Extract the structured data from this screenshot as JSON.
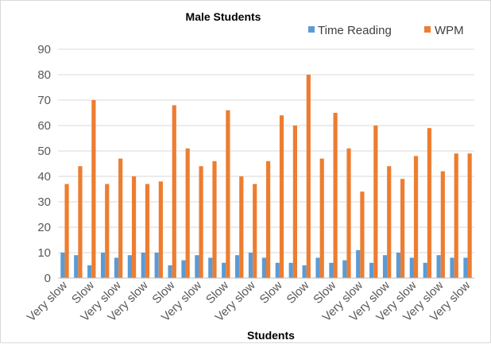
{
  "chart_data": {
    "type": "bar",
    "title": "Male Students",
    "xlabel": "Students",
    "ylabel": "",
    "ylim": [
      0,
      90
    ],
    "yticks": [
      0,
      10,
      20,
      30,
      40,
      50,
      60,
      70,
      80,
      90
    ],
    "grid": true,
    "legend_position": "top-right",
    "categories": [
      "Very slow",
      "Very slow",
      "Slow",
      "Very slow",
      "Very slow",
      "Very slow",
      "Very slow",
      "Slow",
      "Very slow",
      "Very slow",
      "Slow",
      "Very slow",
      "Very slow",
      "Slow",
      "Slow",
      "Slow",
      "Slow",
      "Very slow",
      "Very slow",
      "Very slow",
      "Very slow",
      "Very slow",
      "Very slow",
      "Very slow",
      "Very slow",
      "Very slow",
      "Very slow",
      "Very slow",
      "Very slow",
      "Very slow",
      "Very slow"
    ],
    "visible_category_labels": [
      "Very slow",
      "Slow",
      "Very slow",
      "Very slow",
      "Slow",
      "Very slow",
      "Slow",
      "Very slow",
      "Slow",
      "Slow",
      "Slow",
      "Very slow",
      "Very slow",
      "Very slow",
      "Very slow",
      "Very slow"
    ],
    "series": [
      {
        "name": "Time Reading",
        "color": "#5b9bd5",
        "values": [
          10,
          9,
          5,
          10,
          8,
          9,
          10,
          10,
          5,
          7,
          9,
          8,
          6,
          9,
          10,
          8,
          6,
          6,
          5,
          8,
          6,
          7,
          11,
          6,
          9,
          10,
          8,
          6,
          9,
          8,
          8
        ]
      },
      {
        "name": "WPM",
        "color": "#ed7d31",
        "values": [
          37,
          44,
          70,
          37,
          47,
          40,
          37,
          38,
          68,
          51,
          44,
          46,
          66,
          40,
          37,
          46,
          64,
          60,
          80,
          47,
          65,
          51,
          34,
          60,
          44,
          39,
          48,
          59,
          42,
          49,
          49
        ]
      }
    ]
  }
}
